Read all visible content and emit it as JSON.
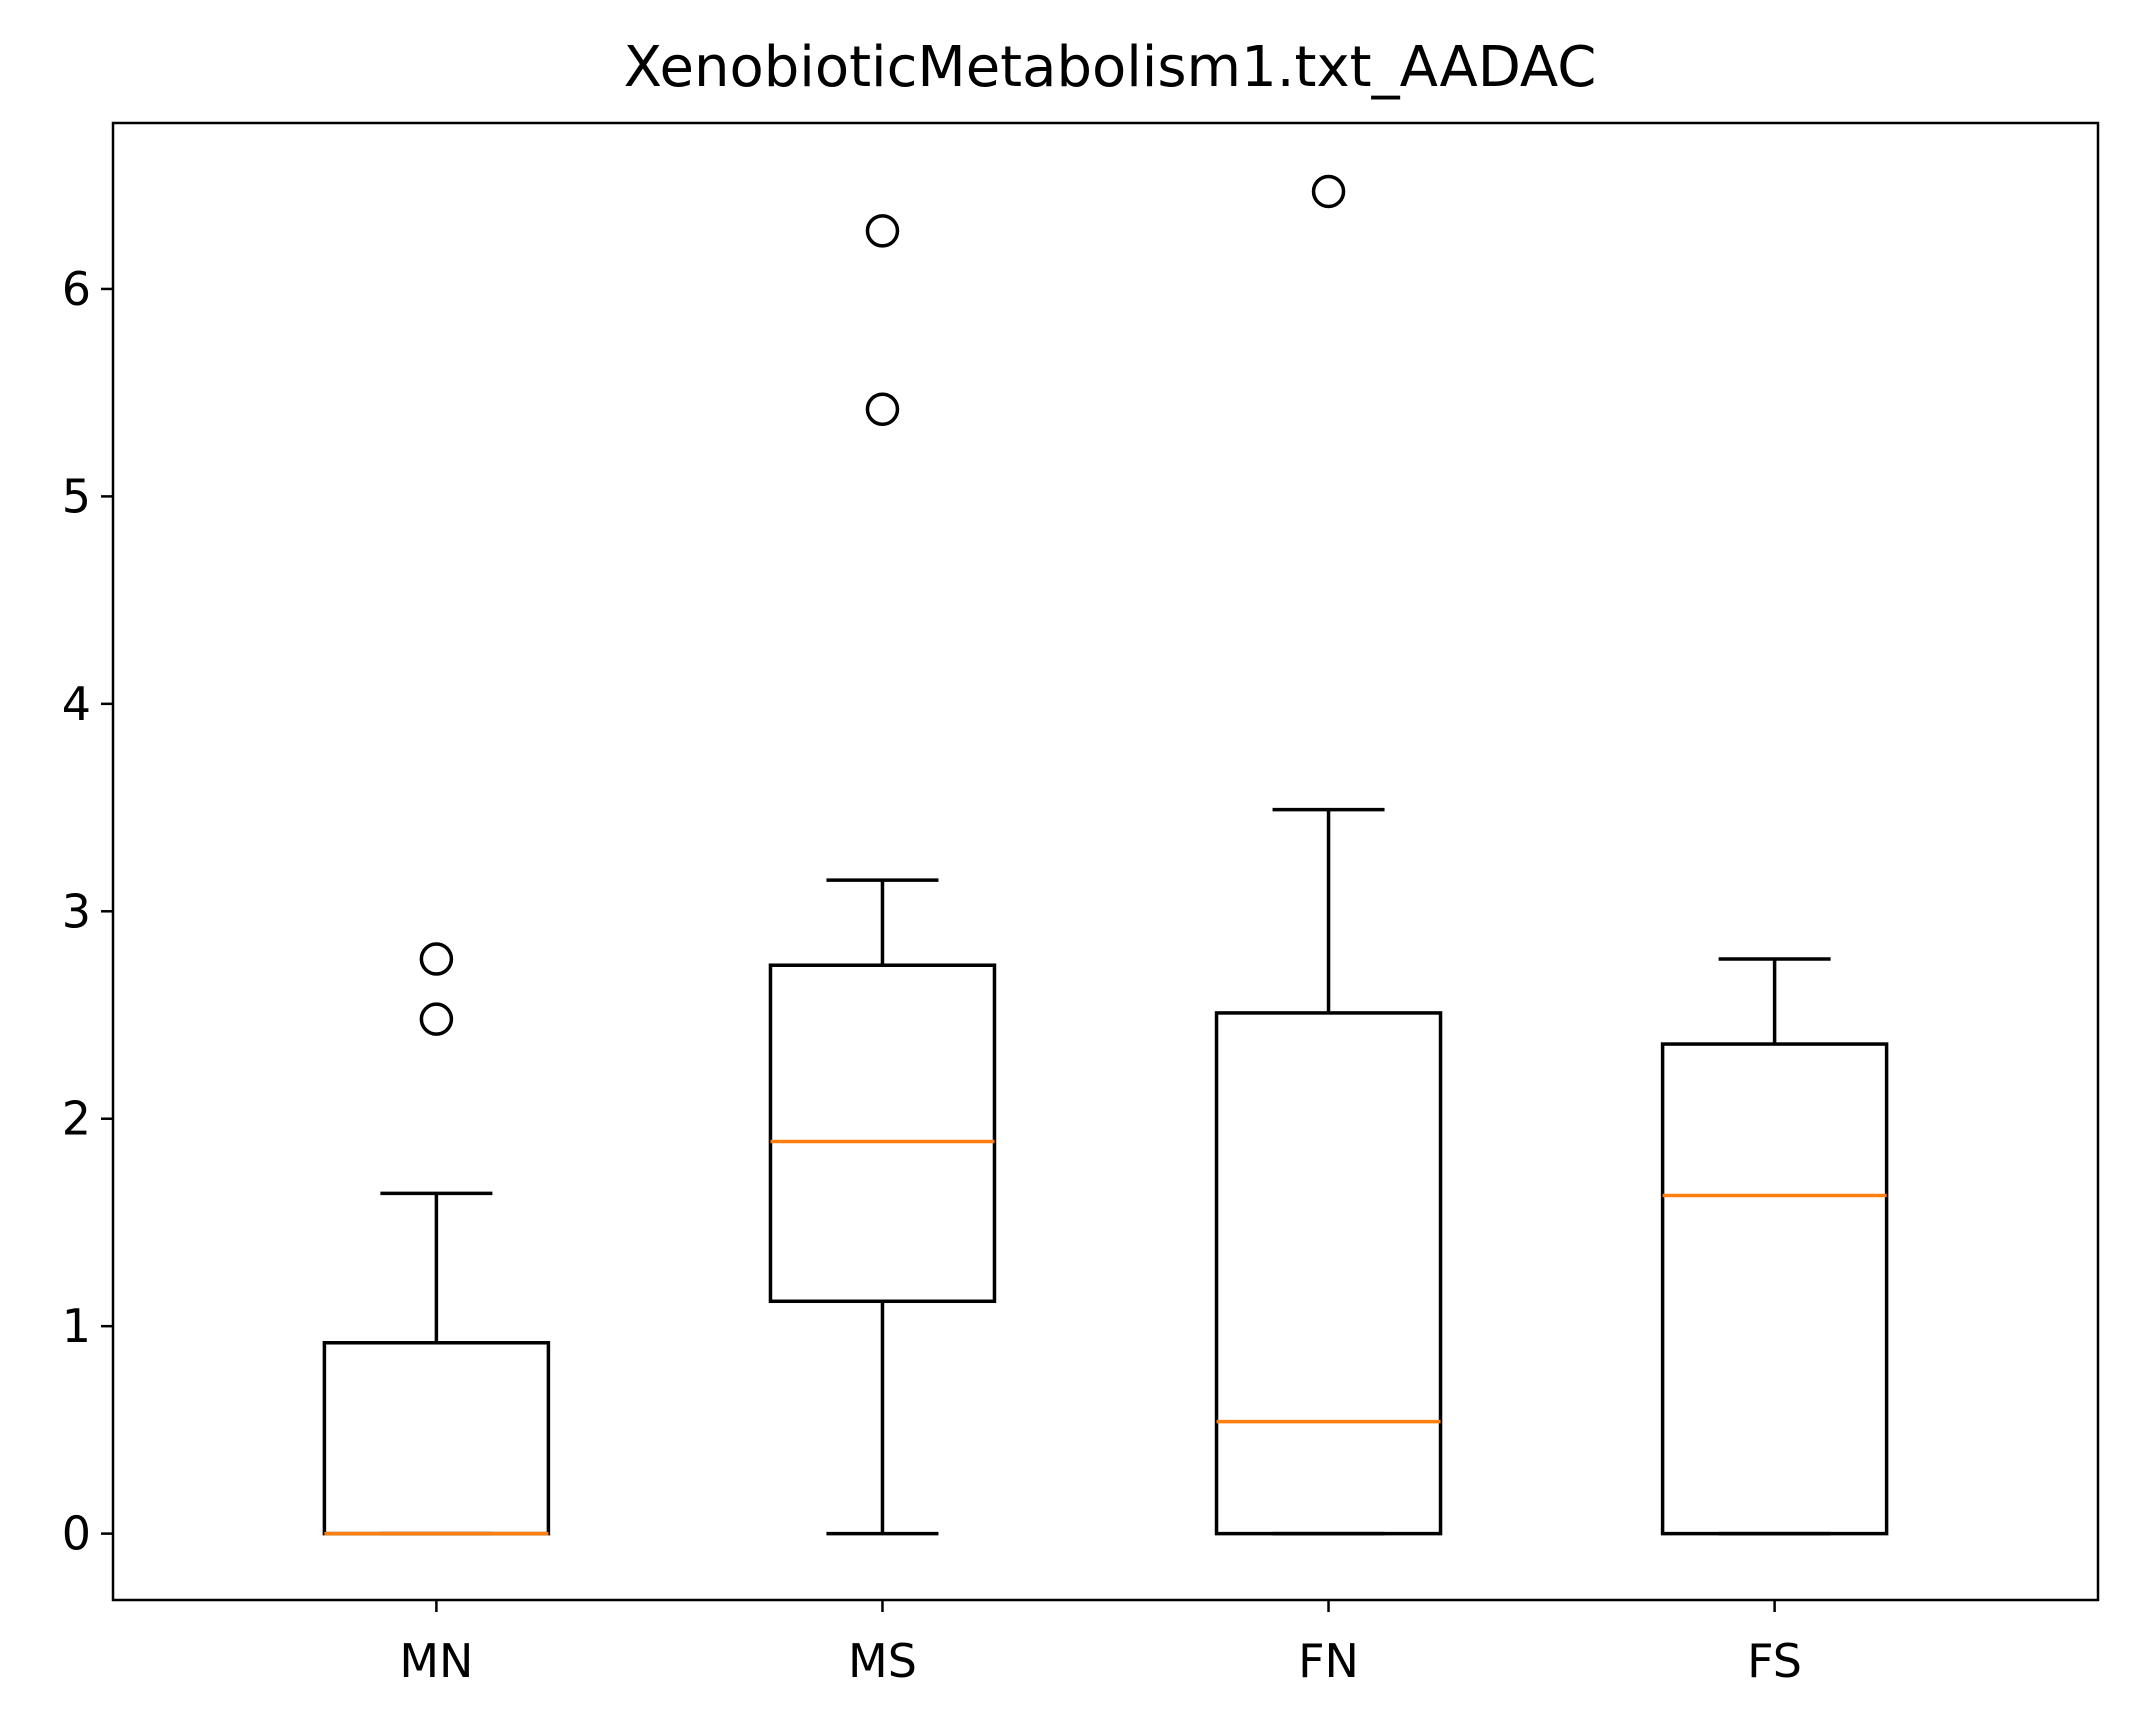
{
  "chart_data": {
    "type": "box",
    "title": "XenobioticMetabolism1.txt_AADAC",
    "xlabel": "",
    "ylabel": "",
    "ylim": [
      -0.32,
      6.8
    ],
    "y_ticks": [
      0,
      1,
      2,
      3,
      4,
      5,
      6
    ],
    "categories": [
      "MN",
      "MS",
      "FN",
      "FS"
    ],
    "boxes": [
      {
        "category": "MN",
        "whisker_low": 0.0,
        "q1": 0.0,
        "median": 0.0,
        "q3": 0.92,
        "whisker_high": 1.64,
        "outliers": [
          2.48,
          2.77
        ]
      },
      {
        "category": "MS",
        "whisker_low": 0.0,
        "q1": 1.12,
        "median": 1.89,
        "q3": 2.74,
        "whisker_high": 3.15,
        "outliers": [
          5.42,
          6.28
        ]
      },
      {
        "category": "FN",
        "whisker_low": 0.0,
        "q1": 0.0,
        "median": 0.54,
        "q3": 2.51,
        "whisker_high": 3.49,
        "outliers": [
          6.47
        ]
      },
      {
        "category": "FS",
        "whisker_low": 0.0,
        "q1": 0.0,
        "median": 1.63,
        "q3": 2.36,
        "whisker_high": 2.77,
        "outliers": []
      }
    ],
    "grid": false,
    "colors": {
      "box": "#000000",
      "median": "#ff7f0e",
      "outlier": "#000000"
    }
  }
}
